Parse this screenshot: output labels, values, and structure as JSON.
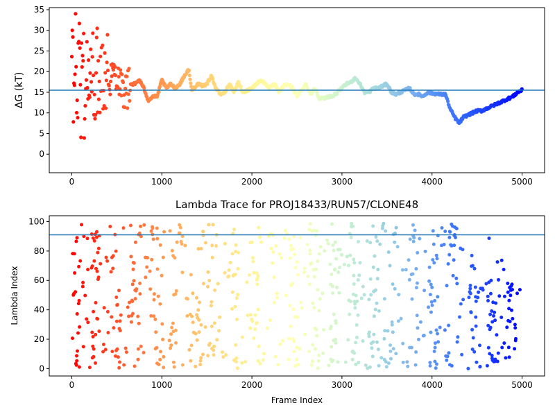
{
  "chart_data": [
    {
      "type": "scatter",
      "title": "",
      "xlabel": "",
      "ylabel": "ΔG (kT)",
      "xlim": [
        -250,
        5250
      ],
      "ylim": [
        -4.5,
        35.5
      ],
      "xticks": [
        0,
        1000,
        2000,
        3000,
        4000,
        5000
      ],
      "yticks": [
        0,
        5,
        10,
        15,
        20,
        25,
        30,
        35
      ],
      "hline": 15.5,
      "hline_color": "#1f77b4",
      "colormap": "rainbow (red at frame 0 to violet at frame 5000)",
      "trend": [
        [
          0,
          18
        ],
        [
          100,
          19
        ],
        [
          200,
          18
        ],
        [
          300,
          20
        ],
        [
          350,
          22
        ],
        [
          400,
          19
        ],
        [
          500,
          20
        ],
        [
          600,
          15
        ],
        [
          650,
          17
        ],
        [
          700,
          17
        ],
        [
          750,
          18
        ],
        [
          800,
          16
        ],
        [
          850,
          13
        ],
        [
          900,
          14
        ],
        [
          950,
          14
        ],
        [
          1000,
          18
        ],
        [
          1050,
          16
        ],
        [
          1100,
          17
        ],
        [
          1150,
          16
        ],
        [
          1200,
          17
        ],
        [
          1250,
          19
        ],
        [
          1300,
          20.5
        ],
        [
          1330,
          15.5
        ],
        [
          1400,
          17
        ],
        [
          1450,
          16.5
        ],
        [
          1500,
          17
        ],
        [
          1550,
          19
        ],
        [
          1600,
          16
        ],
        [
          1650,
          14.5
        ],
        [
          1700,
          15
        ],
        [
          1750,
          17
        ],
        [
          1800,
          15
        ],
        [
          1850,
          17.5
        ],
        [
          1900,
          15
        ],
        [
          1950,
          15.5
        ],
        [
          2000,
          16
        ],
        [
          2050,
          17
        ],
        [
          2100,
          18
        ],
        [
          2150,
          17
        ],
        [
          2200,
          16
        ],
        [
          2250,
          17
        ],
        [
          2300,
          15
        ],
        [
          2350,
          16.5
        ],
        [
          2400,
          17
        ],
        [
          2450,
          16
        ],
        [
          2500,
          14
        ],
        [
          2550,
          15.5
        ],
        [
          2600,
          17
        ],
        [
          2650,
          14.5
        ],
        [
          2700,
          16
        ],
        [
          2750,
          13.5
        ],
        [
          2800,
          13.5
        ],
        [
          2850,
          14
        ],
        [
          2900,
          14
        ],
        [
          2950,
          15
        ],
        [
          3000,
          16
        ],
        [
          3050,
          17
        ],
        [
          3100,
          17.5
        ],
        [
          3150,
          18.5
        ],
        [
          3200,
          17
        ],
        [
          3250,
          15
        ],
        [
          3300,
          15
        ],
        [
          3350,
          16
        ],
        [
          3400,
          16
        ],
        [
          3450,
          16.5
        ],
        [
          3500,
          17
        ],
        [
          3550,
          15
        ],
        [
          3600,
          14.5
        ],
        [
          3650,
          15
        ],
        [
          3700,
          15.5
        ],
        [
          3750,
          16
        ],
        [
          3800,
          14.5
        ],
        [
          3850,
          14.5
        ],
        [
          3900,
          14
        ],
        [
          3950,
          15
        ],
        [
          4000,
          14.8
        ],
        [
          4050,
          14.6
        ],
        [
          4100,
          14.5
        ],
        [
          4150,
          14.5
        ],
        [
          4200,
          11
        ],
        [
          4250,
          9
        ],
        [
          4300,
          7.5
        ],
        [
          4350,
          9
        ],
        [
          4400,
          9.5
        ],
        [
          4450,
          10
        ],
        [
          4500,
          10.5
        ],
        [
          4550,
          10.5
        ],
        [
          4600,
          11
        ],
        [
          4650,
          11.5
        ],
        [
          4700,
          12
        ],
        [
          4750,
          12.5
        ],
        [
          4800,
          13
        ],
        [
          4850,
          13.5
        ],
        [
          4900,
          14
        ],
        [
          4950,
          15
        ],
        [
          5000,
          15.5
        ]
      ]
    },
    {
      "type": "scatter",
      "title": "Lambda Trace for PROJ18433/RUN57/CLONE48",
      "xlabel": "Frame Index",
      "ylabel": "Lambda Index",
      "xlim": [
        -250,
        5250
      ],
      "ylim": [
        -5,
        104
      ],
      "xticks": [
        0,
        1000,
        2000,
        3000,
        4000,
        5000
      ],
      "yticks": [
        0,
        20,
        40,
        60,
        80,
        100
      ],
      "hline": 91,
      "hline_color": "#1f77b4",
      "colormap": "rainbow (red at frame 0 to violet at frame 5000)",
      "y_range": [
        0,
        99
      ],
      "x_range": [
        0,
        5000
      ]
    }
  ]
}
